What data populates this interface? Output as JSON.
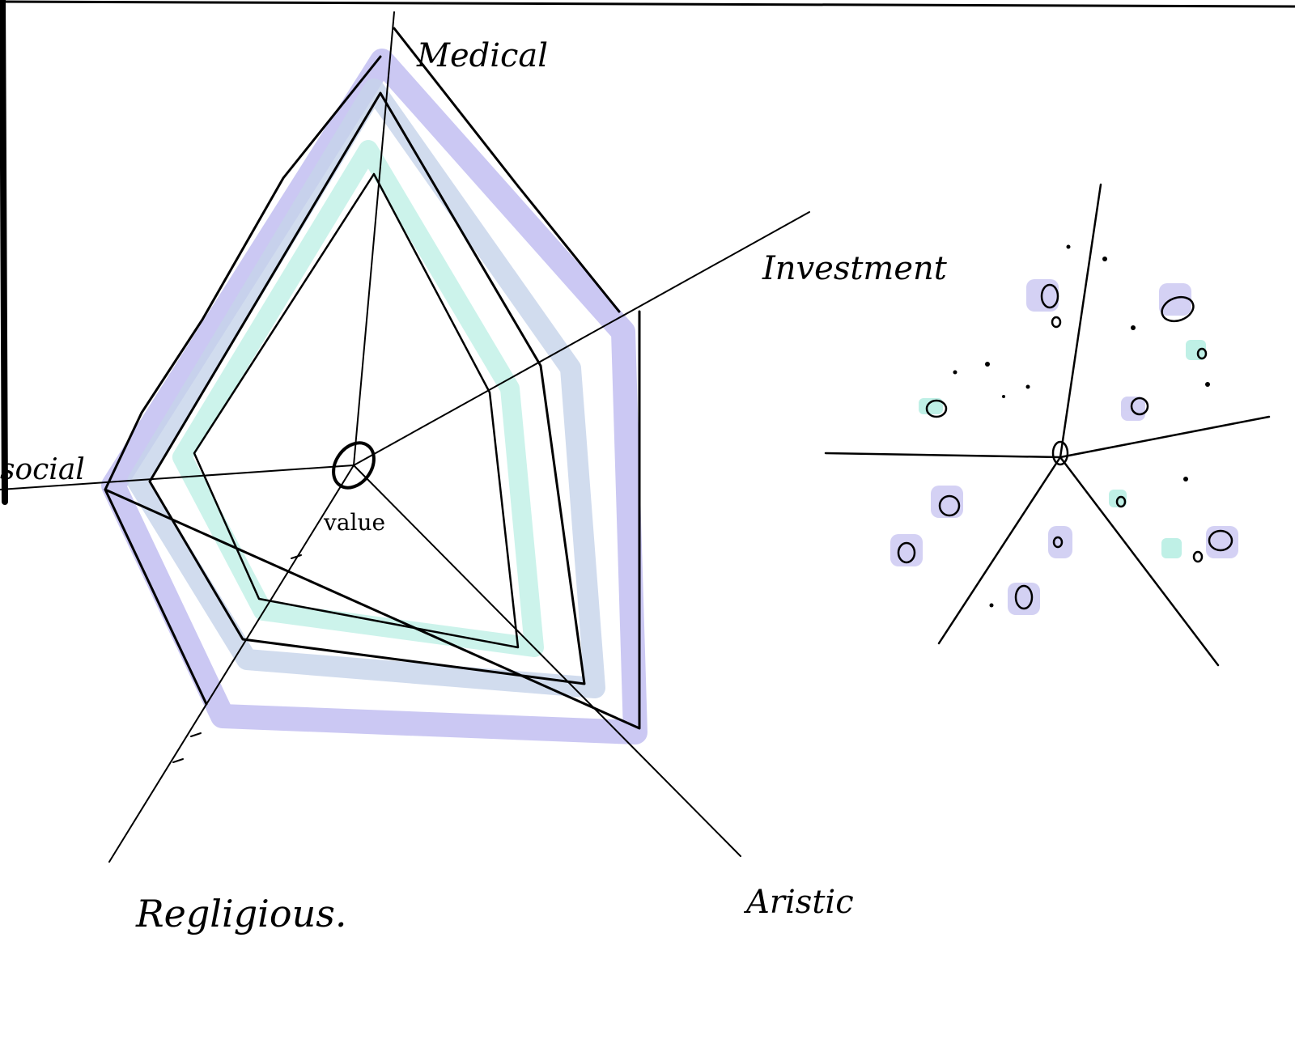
{
  "axes": {
    "top": "Medical",
    "upper_right": "Investment",
    "left": "social",
    "lower_left": "Regligious.",
    "lower_right": "Aristic"
  },
  "center_label": "value"
}
